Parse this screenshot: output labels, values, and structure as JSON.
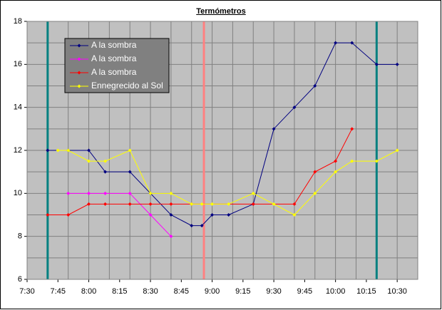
{
  "chart_data": {
    "type": "line",
    "title": "Termómetros",
    "xlim": [
      "7:30",
      "10:40"
    ],
    "xticks": [
      "7:30",
      "7:45",
      "8:00",
      "8:15",
      "8:30",
      "8:45",
      "9:00",
      "9:15",
      "9:30",
      "9:45",
      "10:00",
      "10:15",
      "10:30"
    ],
    "xgrid": [
      "7:30",
      "7:40",
      "7:50",
      "8:00",
      "8:10",
      "8:20",
      "8:30",
      "8:40",
      "8:50",
      "9:00",
      "9:10",
      "9:20",
      "9:30",
      "9:40",
      "9:50",
      "10:00",
      "10:10",
      "10:20",
      "10:30",
      "10:40"
    ],
    "ylim": [
      6,
      18
    ],
    "yticks": [
      6,
      8,
      10,
      12,
      14,
      16,
      18
    ],
    "ygrid": [
      6,
      7,
      8,
      9,
      10,
      11,
      12,
      13,
      14,
      15,
      16,
      17,
      18
    ],
    "series": [
      {
        "name": "A la sombra",
        "color": "#000080",
        "x": [
          "7:40",
          "7:50",
          "8:00",
          "8:08",
          "8:20",
          "8:30",
          "8:40",
          "8:50",
          "8:55",
          "9:00",
          "9:08",
          "9:20",
          "9:30",
          "9:40",
          "9:50",
          "10:00",
          "10:08",
          "10:20",
          "10:30"
        ],
        "values": [
          12,
          12,
          12,
          11,
          11,
          10,
          9,
          8.5,
          8.5,
          9,
          9,
          9.5,
          13,
          14,
          15,
          17,
          17,
          16,
          16
        ]
      },
      {
        "name": "A la sombra",
        "color": "#ff00ff",
        "x": [
          "7:50",
          "8:00",
          "8:08",
          "8:20",
          "8:30",
          "8:40"
        ],
        "values": [
          10,
          10,
          10,
          10,
          9,
          8
        ]
      },
      {
        "name": "A la sombra",
        "color": "#ff0000",
        "x": [
          "7:40",
          "7:50",
          "8:00",
          "8:08",
          "8:20",
          "8:30",
          "8:40",
          "8:50",
          "9:20",
          "9:40",
          "9:50",
          "10:00",
          "10:08"
        ],
        "values": [
          9,
          9,
          9.5,
          9.5,
          9.5,
          9.5,
          9.5,
          9.5,
          9.5,
          9.5,
          11,
          11.5,
          13
        ]
      },
      {
        "name": "Ennegrecido al Sol",
        "color": "#ffff00",
        "x": [
          "7:45",
          "7:50",
          "8:00",
          "8:08",
          "8:20",
          "8:30",
          "8:40",
          "8:50",
          "8:55",
          "9:00",
          "9:08",
          "9:20",
          "9:30",
          "9:40",
          "9:50",
          "10:00",
          "10:08",
          "10:20",
          "10:30"
        ],
        "values": [
          12,
          12,
          11.5,
          11.5,
          12,
          10,
          10,
          9.5,
          9.5,
          9.5,
          9.5,
          10,
          9.5,
          9,
          10,
          11,
          11.5,
          11.5,
          12
        ]
      }
    ],
    "vlines": [
      {
        "x": "7:40",
        "color": "#008080"
      },
      {
        "x": "8:56",
        "color": "#ff8080"
      },
      {
        "x": "10:20",
        "color": "#008080"
      }
    ],
    "grid": true
  }
}
